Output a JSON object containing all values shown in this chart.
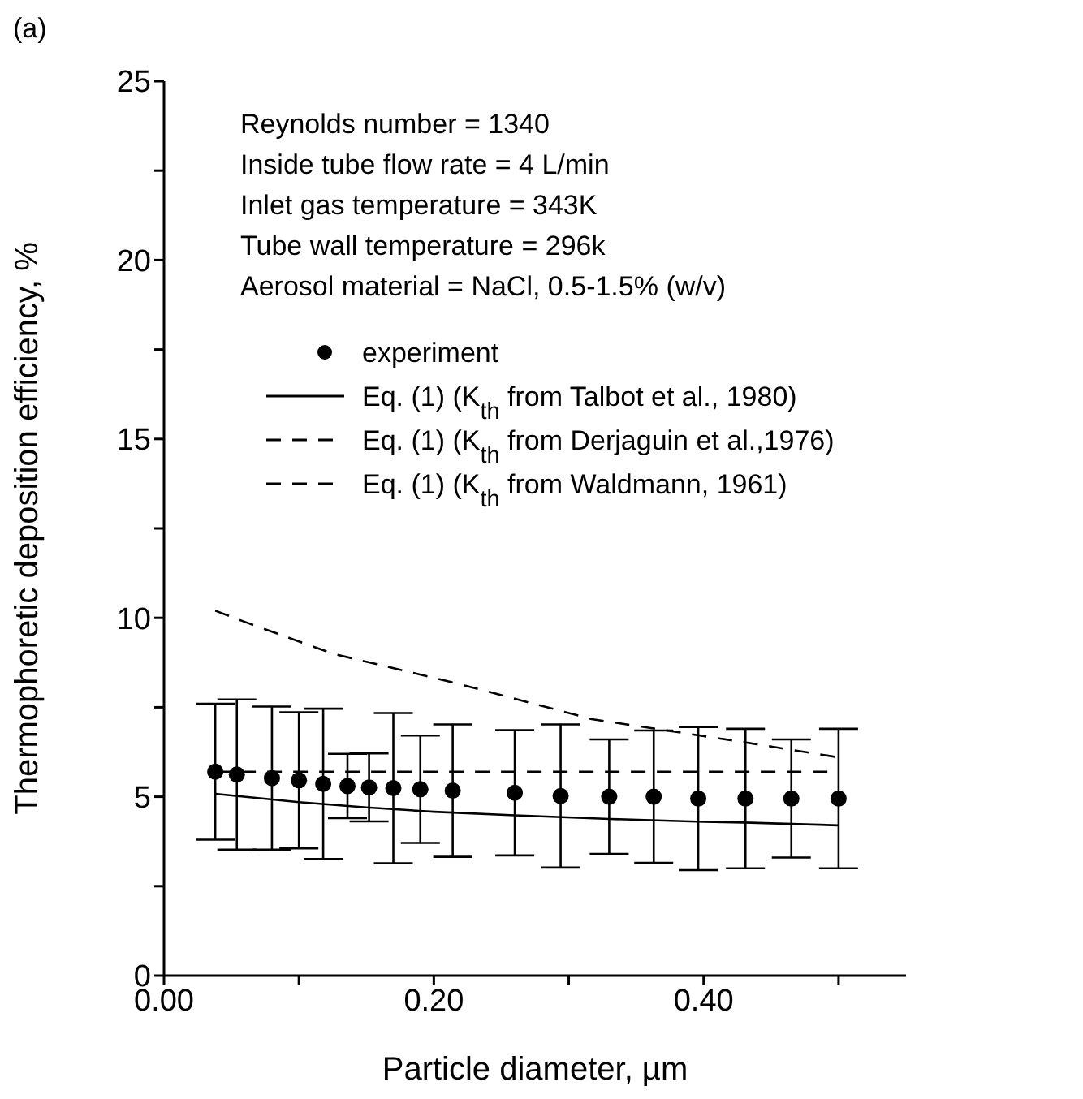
{
  "chart_data": {
    "type": "scatter",
    "title": "(a)",
    "xlabel": "Particle diameter, µm",
    "ylabel": "Thermophoretic deposition efficiency, %",
    "annotations": [
      "Reynolds number = 1340",
      "Inside tube flow rate = 4 L/min",
      "Inlet gas temperature = 343K",
      "Tube wall temperature = 296k",
      "Aerosol material = NaCl, 0.5-1.5% (w/v)"
    ],
    "xlim": [
      0,
      0.55
    ],
    "xticks": [
      {
        "value": 0,
        "label": "0.00"
      },
      {
        "value": 0.1,
        "label": null
      },
      {
        "value": 0.2,
        "label": "0.20"
      },
      {
        "value": 0.3,
        "label": null
      },
      {
        "value": 0.4,
        "label": "0.40"
      },
      {
        "value": 0.5,
        "label": null
      }
    ],
    "ylim": [
      0,
      25
    ],
    "yticks": [
      0,
      {
        "value": 2.5,
        "label": null
      },
      5,
      {
        "value": 7.5,
        "label": null
      },
      10,
      {
        "value": 12.5,
        "label": null
      },
      15,
      {
        "value": 17.5,
        "label": null
      },
      20,
      {
        "value": 22.5,
        "label": null
      },
      25
    ],
    "grid": false,
    "legend": "top",
    "series": [
      {
        "name": "experiment",
        "marker": "circle",
        "color": "#000000",
        "x": [
          0.038,
          0.054,
          0.08,
          0.1,
          0.118,
          0.136,
          0.152,
          0.17,
          0.19,
          0.214,
          0.26,
          0.294,
          0.33,
          0.363,
          0.396,
          0.431,
          0.465,
          0.5
        ],
        "values": [
          5.7,
          5.62,
          5.52,
          5.46,
          5.36,
          5.3,
          5.26,
          5.24,
          5.21,
          5.17,
          5.11,
          5.02,
          5.0,
          5.0,
          4.95,
          4.95,
          4.95,
          4.95
        ],
        "errors": [
          1.9,
          2.1,
          2.0,
          1.9,
          2.1,
          0.9,
          0.95,
          2.1,
          1.5,
          1.85,
          1.75,
          2.0,
          1.6,
          1.85,
          2.0,
          1.95,
          1.65,
          1.95
        ]
      },
      {
        "name": "Eq. (1) (K$_{th}$ from Talbot et al., 1980)",
        "type": "line",
        "line_style": "solid",
        "color": "#000000",
        "x": [
          0.038,
          0.1,
          0.15,
          0.2,
          0.26,
          0.33,
          0.4,
          0.43,
          0.5
        ],
        "values": [
          5.08,
          4.85,
          4.7,
          4.58,
          4.48,
          4.38,
          4.3,
          4.28,
          4.2
        ]
      },
      {
        "name": "Eq. (1) (K$_{th}$ from Derjaguin et al.,1976)",
        "type": "line",
        "line_style": "dashed",
        "color": "#000000",
        "x": [
          0.038,
          0.059,
          0.125,
          0.218,
          0.317,
          0.429,
          0.5
        ],
        "values": [
          10.2,
          9.9,
          9.0,
          8.16,
          7.17,
          6.53,
          6.1
        ]
      },
      {
        "name": "Eq. (1) (K$_{th}$ from Waldmann, 1961)",
        "type": "line",
        "line_style": "dashed",
        "color": "#000000",
        "x": [
          0.038,
          0.5
        ],
        "values": [
          5.7,
          5.7
        ]
      }
    ]
  }
}
